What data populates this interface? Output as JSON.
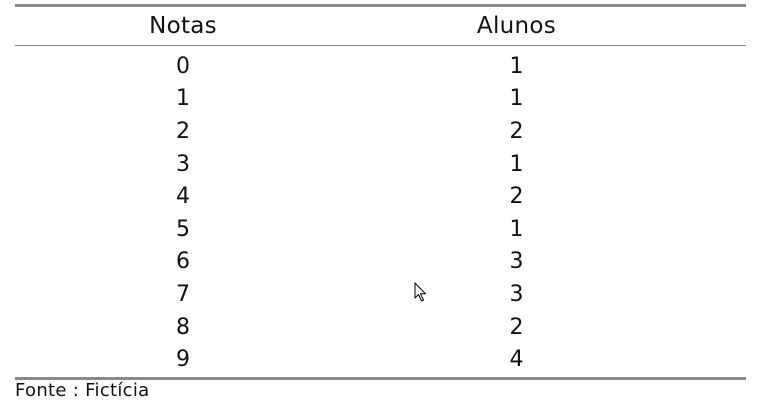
{
  "table": {
    "headers": {
      "notas": "Notas",
      "alunos": "Alunos"
    },
    "rows": [
      {
        "nota": "0",
        "alunos": "1"
      },
      {
        "nota": "1",
        "alunos": "1"
      },
      {
        "nota": "2",
        "alunos": "2"
      },
      {
        "nota": "3",
        "alunos": "1"
      },
      {
        "nota": "4",
        "alunos": "2"
      },
      {
        "nota": "5",
        "alunos": "1"
      },
      {
        "nota": "6",
        "alunos": "3"
      },
      {
        "nota": "7",
        "alunos": "3"
      },
      {
        "nota": "8",
        "alunos": "2"
      },
      {
        "nota": "9",
        "alunos": "4"
      }
    ]
  },
  "source": "Fonte : Fictícia",
  "cursor_icon": "mouse-pointer-icon"
}
